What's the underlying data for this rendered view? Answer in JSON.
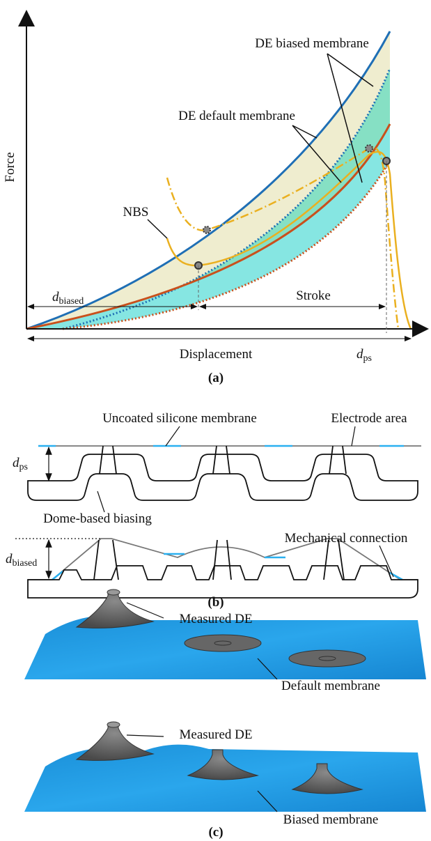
{
  "panel_a": {
    "axis_labels": {
      "y": "Force",
      "x": "Displacement"
    },
    "curve_labels": {
      "biased": "DE biased membrane",
      "default": "DE default membrane",
      "nbs": "NBS"
    },
    "d_biased": {
      "symbol": "d",
      "subscript": "biased"
    },
    "stroke": "Stroke",
    "d_ps": {
      "symbol": "d",
      "subscript": "ps"
    },
    "caption": "(a)"
  },
  "panel_b": {
    "uncoated": "Uncoated silicone membrane",
    "electrode": "Electrode area",
    "d_ps": {
      "symbol": "d",
      "subscript": "ps"
    },
    "dome": "Dome-based biasing",
    "connection": "Mechanical connection",
    "d_biased": {
      "symbol": "d",
      "subscript": "biased"
    },
    "caption": "(b)"
  },
  "panel_c": {
    "measured_top": "Measured DE",
    "default": "Default membrane",
    "measured_bottom": "Measured DE",
    "biased": "Biased membrane",
    "caption": "(c)"
  }
}
